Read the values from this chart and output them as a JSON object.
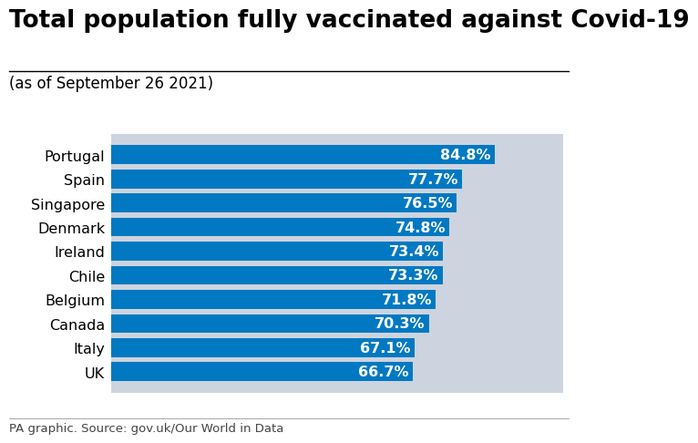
{
  "title": "Total population fully vaccinated against Covid-19",
  "subtitle": "(as of September 26 2021)",
  "caption": "PA graphic. Source: gov.uk/Our World in Data",
  "countries": [
    "Portugal",
    "Spain",
    "Singapore",
    "Denmark",
    "Ireland",
    "Chile",
    "Belgium",
    "Canada",
    "Italy",
    "UK"
  ],
  "values": [
    84.8,
    77.7,
    76.5,
    74.8,
    73.4,
    73.3,
    71.8,
    70.3,
    67.1,
    66.7
  ],
  "labels": [
    "84.8%",
    "77.7%",
    "76.5%",
    "74.8%",
    "73.4%",
    "73.3%",
    "71.8%",
    "70.3%",
    "67.1%",
    "66.7%"
  ],
  "bar_color": "#0079C2",
  "bg_color": "#CDD4DF",
  "fig_bg_color": "#FFFFFF",
  "xlim": [
    0,
    100
  ],
  "bar_height": 0.78,
  "title_fontsize": 19,
  "subtitle_fontsize": 12,
  "label_fontsize": 11.5,
  "country_fontsize": 11.5,
  "caption_fontsize": 9.5,
  "value_label_color": "#FFFFFF"
}
